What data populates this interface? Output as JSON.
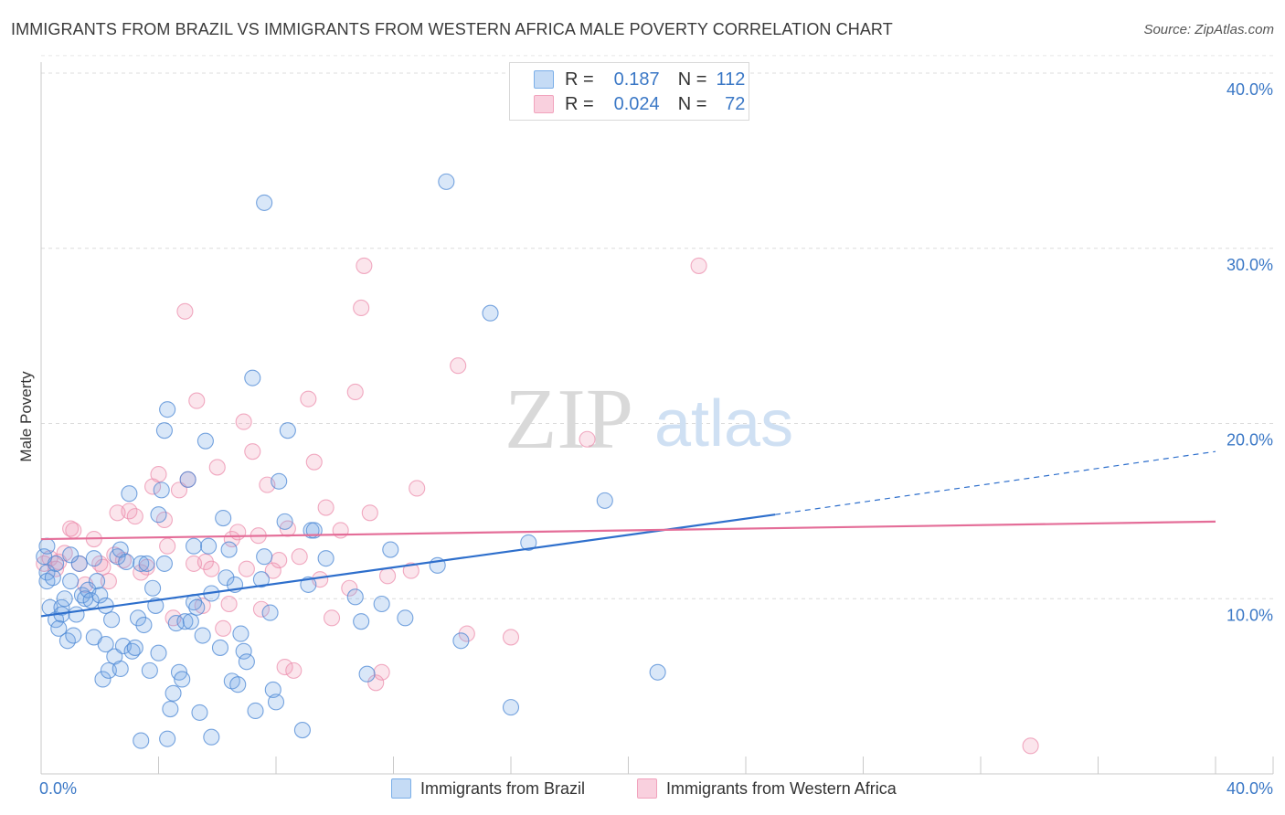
{
  "header": {
    "title": "IMMIGRANTS FROM BRAZIL VS IMMIGRANTS FROM WESTERN AFRICA MALE POVERTY CORRELATION CHART",
    "source": "Source: ZipAtlas.com"
  },
  "watermark": {
    "zip": "ZIP",
    "atlas": "atlas"
  },
  "legend": {
    "r_label": "R =",
    "n_label": "N =",
    "rows": [
      {
        "name": "Immigrants from Brazil",
        "r": "0.187",
        "n": "112",
        "color": "#7aaee8"
      },
      {
        "name": "Immigrants from Western Africa",
        "r": "0.024",
        "n": "72",
        "color": "#f1a3bd"
      }
    ]
  },
  "colors": {
    "blue": "#4b87d4",
    "blue_line": "#2e6fcc",
    "pink": "#ec8fae",
    "pink_line": "#e46d98",
    "tick": "#3b78c6"
  },
  "chart_data": {
    "type": "scatter",
    "title": "IMMIGRANTS FROM BRAZIL VS IMMIGRANTS FROM WESTERN AFRICA MALE POVERTY CORRELATION CHART",
    "xlabel": "",
    "ylabel": "Male Poverty",
    "xlim": [
      0,
      40
    ],
    "ylim": [
      0,
      40
    ],
    "x_tick_labels": [
      "0.0%",
      "40.0%"
    ],
    "y_ticks": [
      10,
      20,
      30,
      40
    ],
    "y_tick_labels": [
      "10.0%",
      "20.0%",
      "30.0%",
      "40.0%"
    ],
    "grid": true,
    "legend_position": "top-center",
    "series": [
      {
        "name": "Immigrants from Brazil",
        "color": "#4b87d4",
        "trend": {
          "x": [
            0,
            25
          ],
          "y": [
            9.0,
            14.8
          ],
          "dashed_to": [
            40,
            18.4
          ]
        },
        "points": [
          [
            0.1,
            12.4
          ],
          [
            0.2,
            11.5
          ],
          [
            0.2,
            11.0
          ],
          [
            0.3,
            9.5
          ],
          [
            0.4,
            11.2
          ],
          [
            0.5,
            12.0
          ],
          [
            0.5,
            8.8
          ],
          [
            0.6,
            8.3
          ],
          [
            0.7,
            9.5
          ],
          [
            0.7,
            9.1
          ],
          [
            0.8,
            10.0
          ],
          [
            0.9,
            7.6
          ],
          [
            1.0,
            11.0
          ],
          [
            1.1,
            7.9
          ],
          [
            1.2,
            9.1
          ],
          [
            1.3,
            12.0
          ],
          [
            1.4,
            10.2
          ],
          [
            1.5,
            10.0
          ],
          [
            1.6,
            10.5
          ],
          [
            1.7,
            9.9
          ],
          [
            1.8,
            7.8
          ],
          [
            1.8,
            12.3
          ],
          [
            1.9,
            11.0
          ],
          [
            2.0,
            10.2
          ],
          [
            2.1,
            5.4
          ],
          [
            2.2,
            7.4
          ],
          [
            2.2,
            9.6
          ],
          [
            2.3,
            5.9
          ],
          [
            2.4,
            8.8
          ],
          [
            2.5,
            6.7
          ],
          [
            2.6,
            12.4
          ],
          [
            2.7,
            6.0
          ],
          [
            2.7,
            12.8
          ],
          [
            2.8,
            7.3
          ],
          [
            2.9,
            12.1
          ],
          [
            3.0,
            16.0
          ],
          [
            3.1,
            7.0
          ],
          [
            3.2,
            7.2
          ],
          [
            3.3,
            8.9
          ],
          [
            3.4,
            12.0
          ],
          [
            3.4,
            1.9
          ],
          [
            3.5,
            8.5
          ],
          [
            3.6,
            12.0
          ],
          [
            3.7,
            5.9
          ],
          [
            3.8,
            10.6
          ],
          [
            3.9,
            9.6
          ],
          [
            4.0,
            14.8
          ],
          [
            4.0,
            6.9
          ],
          [
            4.1,
            16.2
          ],
          [
            4.2,
            12.0
          ],
          [
            4.2,
            19.6
          ],
          [
            4.3,
            2.0
          ],
          [
            4.3,
            20.8
          ],
          [
            4.4,
            3.7
          ],
          [
            4.5,
            4.6
          ],
          [
            4.6,
            8.6
          ],
          [
            4.7,
            5.8
          ],
          [
            4.8,
            5.4
          ],
          [
            4.9,
            8.7
          ],
          [
            5.0,
            16.8
          ],
          [
            5.1,
            8.7
          ],
          [
            5.2,
            9.8
          ],
          [
            5.2,
            13.0
          ],
          [
            5.3,
            9.5
          ],
          [
            5.4,
            3.5
          ],
          [
            5.5,
            7.9
          ],
          [
            5.6,
            19.0
          ],
          [
            5.7,
            13.0
          ],
          [
            5.8,
            10.3
          ],
          [
            5.8,
            2.1
          ],
          [
            6.1,
            7.2
          ],
          [
            6.2,
            14.6
          ],
          [
            6.3,
            11.2
          ],
          [
            6.4,
            12.8
          ],
          [
            6.5,
            5.3
          ],
          [
            6.6,
            10.8
          ],
          [
            6.7,
            5.1
          ],
          [
            6.8,
            8.0
          ],
          [
            6.9,
            7.0
          ],
          [
            7.0,
            6.4
          ],
          [
            7.2,
            22.6
          ],
          [
            7.3,
            3.6
          ],
          [
            7.5,
            11.1
          ],
          [
            7.6,
            32.6
          ],
          [
            7.6,
            12.4
          ],
          [
            7.8,
            9.2
          ],
          [
            7.9,
            4.8
          ],
          [
            8.0,
            4.1
          ],
          [
            8.1,
            16.7
          ],
          [
            8.3,
            14.4
          ],
          [
            8.4,
            19.6
          ],
          [
            8.9,
            2.5
          ],
          [
            9.1,
            10.8
          ],
          [
            9.2,
            13.9
          ],
          [
            9.3,
            13.9
          ],
          [
            9.7,
            12.3
          ],
          [
            10.7,
            10.1
          ],
          [
            10.9,
            8.7
          ],
          [
            11.1,
            5.7
          ],
          [
            11.6,
            9.7
          ],
          [
            11.9,
            12.8
          ],
          [
            12.4,
            8.9
          ],
          [
            13.5,
            11.9
          ],
          [
            13.8,
            33.8
          ],
          [
            14.3,
            7.6
          ],
          [
            15.3,
            26.3
          ],
          [
            16.0,
            3.8
          ],
          [
            16.6,
            13.2
          ],
          [
            19.2,
            15.6
          ],
          [
            21.0,
            5.8
          ],
          [
            0.2,
            13.0
          ],
          [
            1.0,
            12.5
          ]
        ]
      },
      {
        "name": "Immigrants from Western Africa",
        "color": "#ec8fae",
        "trend": {
          "x": [
            0,
            40
          ],
          "y": [
            13.4,
            14.4
          ]
        },
        "points": [
          [
            0.1,
            12.0
          ],
          [
            0.3,
            12.3
          ],
          [
            0.5,
            11.7
          ],
          [
            0.6,
            12.1
          ],
          [
            0.8,
            12.6
          ],
          [
            1.0,
            14.0
          ],
          [
            1.1,
            13.9
          ],
          [
            1.3,
            12.0
          ],
          [
            1.5,
            10.8
          ],
          [
            1.8,
            13.4
          ],
          [
            2.0,
            12.0
          ],
          [
            2.1,
            11.8
          ],
          [
            2.3,
            11.0
          ],
          [
            2.5,
            12.5
          ],
          [
            2.6,
            14.9
          ],
          [
            2.8,
            12.2
          ],
          [
            3.0,
            15.0
          ],
          [
            3.2,
            14.7
          ],
          [
            3.4,
            11.5
          ],
          [
            3.6,
            11.8
          ],
          [
            3.8,
            16.4
          ],
          [
            4.0,
            17.1
          ],
          [
            4.2,
            14.5
          ],
          [
            4.3,
            13.0
          ],
          [
            4.5,
            8.9
          ],
          [
            4.7,
            16.2
          ],
          [
            4.9,
            26.4
          ],
          [
            5.0,
            16.8
          ],
          [
            5.2,
            12.0
          ],
          [
            5.3,
            21.3
          ],
          [
            5.5,
            9.6
          ],
          [
            5.6,
            12.1
          ],
          [
            5.8,
            11.7
          ],
          [
            6.0,
            17.5
          ],
          [
            6.2,
            8.3
          ],
          [
            6.4,
            9.7
          ],
          [
            6.5,
            13.4
          ],
          [
            6.7,
            13.8
          ],
          [
            6.9,
            20.1
          ],
          [
            7.0,
            11.7
          ],
          [
            7.2,
            18.4
          ],
          [
            7.4,
            13.6
          ],
          [
            7.5,
            9.4
          ],
          [
            7.7,
            16.5
          ],
          [
            7.9,
            11.6
          ],
          [
            8.1,
            12.2
          ],
          [
            8.3,
            6.1
          ],
          [
            8.4,
            14.0
          ],
          [
            8.6,
            5.9
          ],
          [
            8.8,
            12.4
          ],
          [
            9.1,
            21.4
          ],
          [
            9.3,
            17.8
          ],
          [
            9.5,
            11.1
          ],
          [
            9.7,
            15.2
          ],
          [
            9.9,
            8.9
          ],
          [
            10.2,
            13.9
          ],
          [
            10.5,
            10.6
          ],
          [
            10.7,
            21.8
          ],
          [
            10.9,
            26.6
          ],
          [
            11.0,
            29.0
          ],
          [
            11.2,
            14.9
          ],
          [
            11.4,
            5.2
          ],
          [
            11.6,
            5.8
          ],
          [
            11.8,
            11.3
          ],
          [
            12.6,
            11.6
          ],
          [
            12.8,
            16.3
          ],
          [
            14.2,
            23.3
          ],
          [
            14.5,
            8.0
          ],
          [
            16.0,
            7.8
          ],
          [
            18.6,
            19.1
          ],
          [
            22.4,
            29.0
          ],
          [
            33.7,
            1.6
          ]
        ]
      }
    ]
  }
}
